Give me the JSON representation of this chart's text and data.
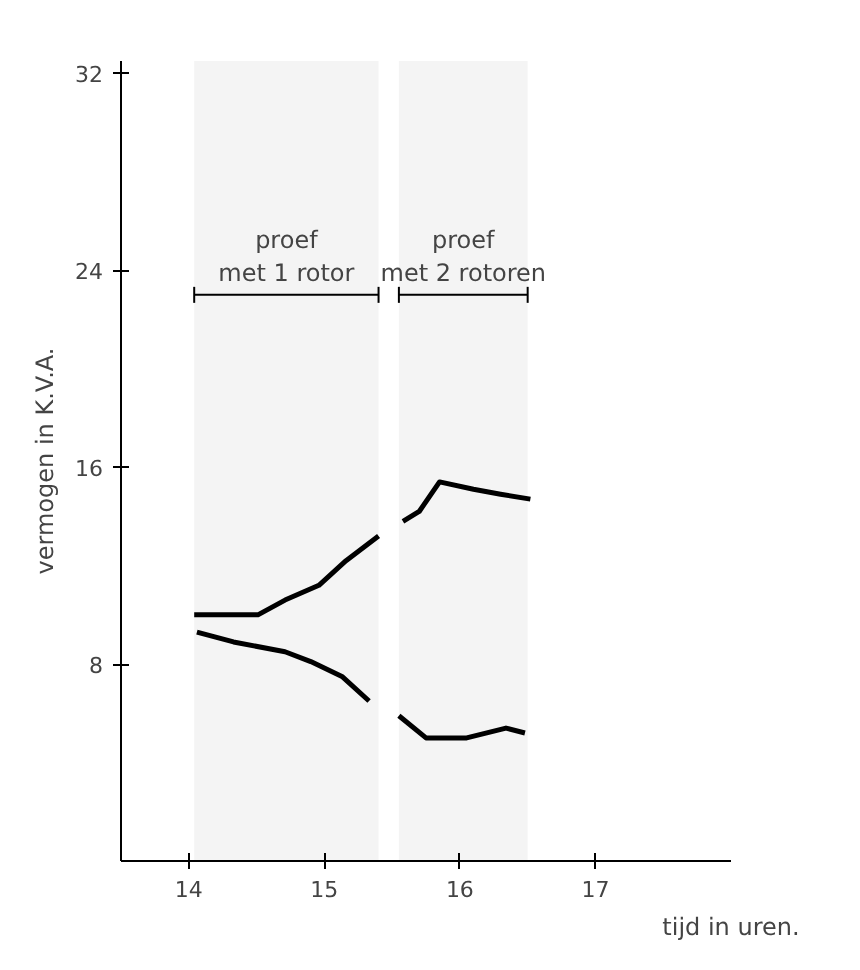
{
  "chart_data": {
    "type": "line",
    "xlabel": "tijd in uren.",
    "ylabel": "vermogen in K.V.A.",
    "xlim": [
      13.5,
      18
    ],
    "xticks": [
      14,
      15,
      16,
      17
    ],
    "ylim": [
      0,
      32.5
    ],
    "yticks": [
      8,
      16,
      24,
      32
    ],
    "grid": false,
    "marker": "none",
    "line_style": "solid",
    "series": [
      {
        "color": "#000000",
        "x": [
          14.04,
          14.51,
          14.71,
          14.96,
          15.16,
          15.4
        ],
        "values": [
          10.0,
          10.0,
          10.6,
          11.2,
          12.2,
          13.2
        ]
      },
      {
        "color": "#000000",
        "x": [
          14.06,
          14.33,
          14.71,
          14.9,
          15.13,
          15.33
        ],
        "values": [
          9.3,
          8.9,
          8.5,
          8.1,
          7.5,
          6.5
        ]
      },
      {
        "color": "#000000",
        "x": [
          15.58,
          15.7,
          15.85,
          16.1,
          16.3,
          16.52
        ],
        "values": [
          13.8,
          14.2,
          15.4,
          15.1,
          14.9,
          14.7
        ]
      },
      {
        "color": "#000000",
        "x": [
          15.55,
          15.75,
          16.05,
          16.34,
          16.48
        ],
        "values": [
          5.9,
          5.0,
          5.0,
          5.4,
          5.2
        ]
      }
    ],
    "bands": [
      {
        "axis": "x",
        "from": 14.04,
        "to": 15.4,
        "label": "proef\nmet 1 rotor",
        "color": "#f4f4f4"
      },
      {
        "axis": "x",
        "from": 15.55,
        "to": 16.5,
        "label": "proef\nmet 2 rotoren",
        "color": "#f4f4f4"
      }
    ]
  }
}
